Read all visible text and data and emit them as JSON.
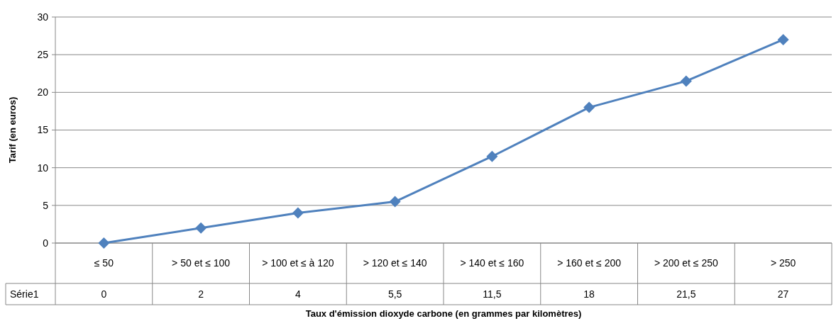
{
  "chart_data": {
    "type": "line",
    "xlabel": "Taux d'émission dioxyde carbone (en grammes par kilomètres)",
    "ylabel": "Tarif (en euros)",
    "categories": [
      "≤  50",
      "> 50 et ≤ 100",
      "> 100 et ≤ à 120",
      "> 120 et ≤ 140",
      "> 140 et ≤ 160",
      "> 160 et ≤ 200",
      "> 200 et ≤ 250",
      "> 250"
    ],
    "series": [
      {
        "name": "Série1",
        "color": "#4f81bd",
        "values": [
          0,
          2,
          4,
          5.5,
          11.5,
          18,
          21.5,
          27
        ],
        "value_labels": [
          "0",
          "2",
          "4",
          "5,5",
          "11,5",
          "18",
          "21,5",
          "27"
        ]
      }
    ],
    "ylim": [
      0,
      30
    ],
    "yticks": [
      0,
      5,
      10,
      15,
      20,
      25,
      30
    ],
    "grid": "y",
    "marker": "diamond",
    "line_style": "solid"
  }
}
